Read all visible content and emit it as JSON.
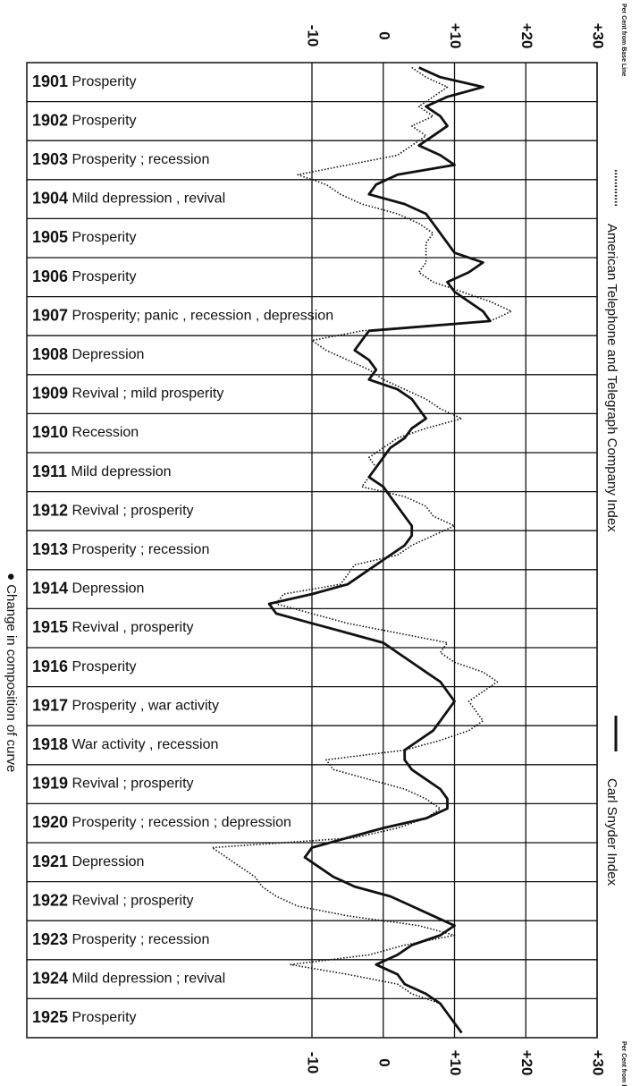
{
  "chart_data": {
    "type": "line",
    "categories": [
      "1901",
      "1902",
      "1903",
      "1904",
      "1905",
      "1906",
      "1907",
      "1908",
      "1909",
      "1910",
      "1911",
      "1912",
      "1913",
      "1914",
      "1915",
      "1916",
      "1917",
      "1918",
      "1919",
      "1920",
      "1921",
      "1922",
      "1923",
      "1924",
      "1925"
    ],
    "phases": [
      "Prosperity",
      "Prosperity",
      "Prosperity ; recession",
      "Mild depression , revival",
      "Prosperity",
      "Prosperity",
      "Prosperity; panic , recession , depression",
      "Depression",
      "Revival ; mild prosperity",
      "Recession",
      "Mild depression",
      "Revival ; prosperity",
      "Prosperity ; recession",
      "Depression",
      "Revival , prosperity",
      "Prosperity",
      "Prosperity , war activity",
      "War activity , recession",
      "Revival ; prosperity",
      "Prosperity ; recession ; depression",
      "Depression",
      "Revival ; prosperity",
      "Prosperity ; recession",
      "Mild depression ; revival",
      "Prosperity"
    ],
    "series": [
      {
        "name": "American Telephone and Telegraph Company Index",
        "color": "#111111",
        "style": "dotted",
        "values": [
          [
            4,
            6,
            9,
            7
          ],
          [
            5,
            7,
            4,
            6
          ],
          [
            4,
            2,
            -5,
            -12
          ],
          [
            -8,
            -6,
            -3,
            2
          ],
          [
            5,
            7,
            6,
            6
          ],
          [
            6,
            5,
            7,
            11
          ],
          [
            15,
            18,
            15,
            -3
          ],
          [
            -10,
            -8,
            -5,
            -2
          ],
          [
            0,
            3,
            6,
            8
          ],
          [
            11,
            6,
            2,
            0
          ],
          [
            -2,
            -1,
            -2,
            -3
          ],
          [
            3,
            6,
            7,
            10
          ],
          [
            7,
            4,
            2,
            -4
          ],
          [
            -5,
            -6,
            -14,
            -15
          ],
          [
            -10,
            -5,
            2,
            9
          ],
          [
            8,
            10,
            14,
            16
          ],
          [
            14,
            12,
            13,
            14
          ],
          [
            12,
            8,
            3,
            -8
          ],
          [
            -7,
            -2,
            3,
            6
          ],
          [
            8,
            6,
            2,
            -4
          ],
          [
            -24,
            -22,
            -20,
            -18
          ],
          [
            -17,
            -15,
            -12,
            -5
          ],
          [
            5,
            10,
            3,
            -2
          ],
          [
            -13,
            -5,
            2,
            4
          ],
          [
            8,
            9,
            10,
            11
          ]
        ]
      },
      {
        "name": "Carl Snyder Index",
        "color": "#111111",
        "style": "solid",
        "values": [
          [
            5,
            8,
            14,
            9
          ],
          [
            6,
            8,
            9,
            7
          ],
          [
            5,
            8,
            10,
            2
          ],
          [
            -1,
            -2,
            3,
            6
          ],
          [
            7,
            8,
            9,
            10
          ],
          [
            14,
            12,
            9,
            10
          ],
          [
            12,
            14,
            15,
            -2
          ],
          [
            -3,
            -4,
            -2,
            -1
          ],
          [
            -2,
            2,
            4,
            5
          ],
          [
            6,
            4,
            3,
            1
          ],
          [
            0,
            -1,
            -2,
            0
          ],
          [
            1,
            2,
            3,
            4
          ],
          [
            4,
            3,
            1,
            -1
          ],
          [
            -3,
            -5,
            -10,
            -16
          ],
          [
            -15,
            -10,
            -5,
            0
          ],
          [
            2,
            4,
            6,
            8
          ],
          [
            9,
            10,
            9,
            8
          ],
          [
            7,
            5,
            3,
            3
          ],
          [
            4,
            6,
            8,
            9
          ],
          [
            9,
            6,
            0,
            -5
          ],
          [
            -10,
            -11,
            -9,
            -7
          ],
          [
            -4,
            1,
            4,
            7
          ],
          [
            10,
            8,
            4,
            2
          ],
          [
            -1,
            2,
            3,
            6
          ],
          [
            8,
            9,
            10,
            11
          ]
        ]
      }
    ],
    "ylim": [
      -50,
      30
    ],
    "yticks": [
      -10,
      0,
      {
        "value": 10,
        "label": "+10"
      },
      {
        "value": 20,
        "label": "+20"
      },
      {
        "value": 30,
        "label": "+30"
      }
    ],
    "grid": true,
    "axis_label": "Per Cent from Base Line",
    "note": "● Change in composition of curve"
  }
}
